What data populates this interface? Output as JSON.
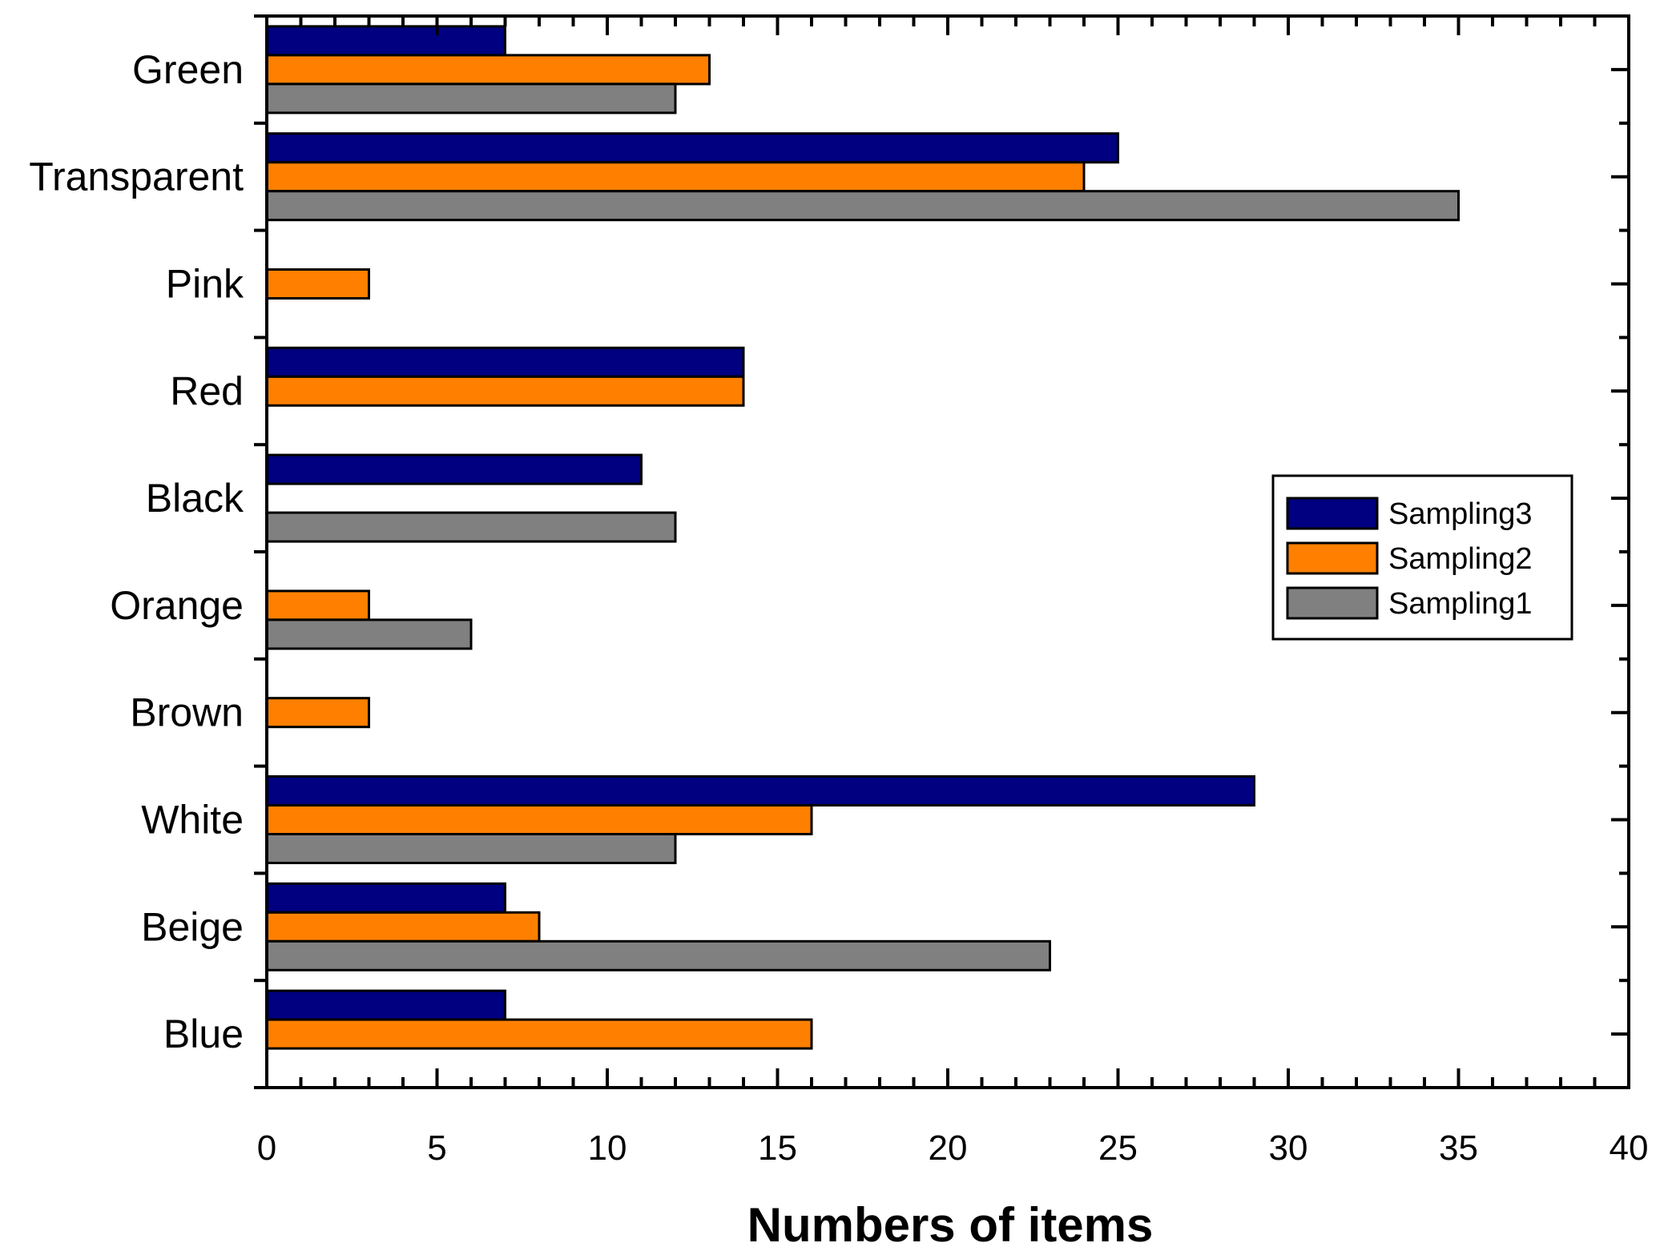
{
  "chart_data": {
    "type": "bar",
    "orientation": "horizontal",
    "title": "",
    "xlabel": "Numbers of items",
    "ylabel": "",
    "xlim": [
      0,
      40
    ],
    "xticks": [
      "0",
      "5",
      "10",
      "15",
      "20",
      "25",
      "30",
      "35",
      "40"
    ],
    "categories": [
      "Green",
      "Transparent",
      "Pink",
      "Red",
      "Black",
      "Orange",
      "Brown",
      "White",
      "Beige",
      "Blue"
    ],
    "series": [
      {
        "name": "Sampling3",
        "color": "#000080",
        "values": [
          7,
          25,
          0,
          14,
          11,
          0,
          0,
          29,
          7,
          7
        ]
      },
      {
        "name": "Sampling2",
        "color": "#ff8000",
        "values": [
          13,
          24,
          3,
          14,
          0,
          3,
          3,
          16,
          8,
          16
        ]
      },
      {
        "name": "Sampling1",
        "color": "#808080",
        "values": [
          12,
          35,
          0,
          0,
          12,
          6,
          0,
          12,
          23,
          0
        ]
      }
    ],
    "legend_position": "right",
    "grid": false
  }
}
